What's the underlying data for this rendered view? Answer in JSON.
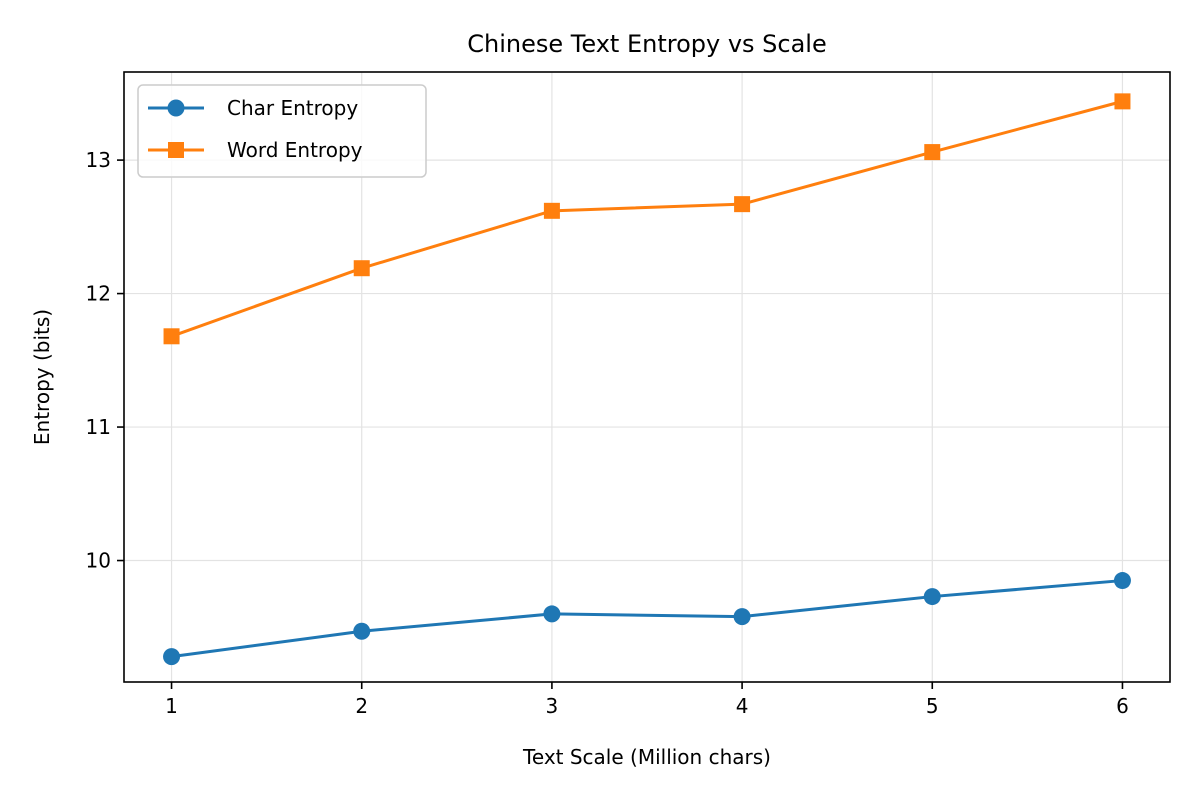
{
  "chart_data": {
    "type": "line",
    "title": "Chinese Text Entropy vs Scale",
    "xlabel": "Text Scale (Million chars)",
    "ylabel": "Entropy (bits)",
    "x": [
      1,
      2,
      3,
      4,
      5,
      6
    ],
    "xticks": [
      "1",
      "2",
      "3",
      "4",
      "5",
      "6"
    ],
    "yticks": [
      "10",
      "11",
      "12",
      "13"
    ],
    "xlim": [
      0.75,
      6.25
    ],
    "ylim": [
      9.09,
      13.66
    ],
    "grid": true,
    "legend_position": "top-left",
    "series": [
      {
        "name": "Char Entropy",
        "values": [
          9.28,
          9.47,
          9.6,
          9.58,
          9.73,
          9.85
        ],
        "color": "#1f77b4",
        "marker": "circle"
      },
      {
        "name": "Word Entropy",
        "values": [
          11.68,
          12.19,
          12.62,
          12.67,
          13.06,
          13.44
        ],
        "color": "#ff7f0e",
        "marker": "square"
      }
    ]
  }
}
